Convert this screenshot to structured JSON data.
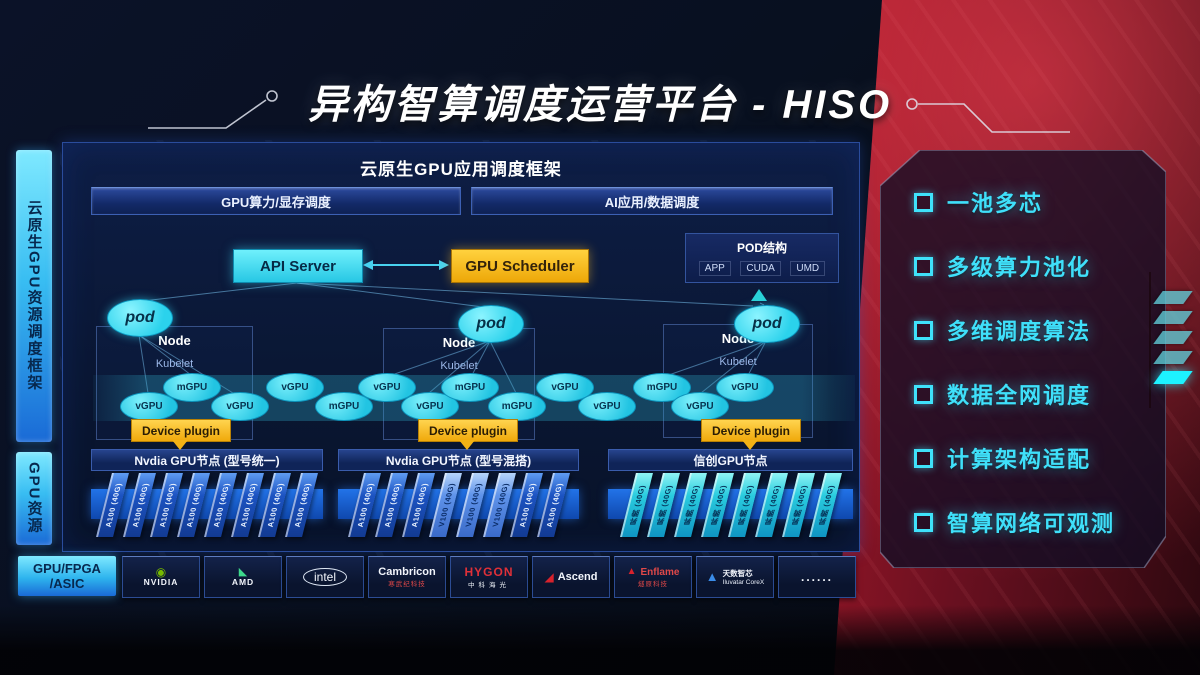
{
  "title": "异构智算调度运营平台 - HISO",
  "sidebar": {
    "top_label": "云原生GPU资源调度框架",
    "bottom_label": "GPU资源"
  },
  "framework": {
    "header": "云原生GPU应用调度框架",
    "bars": [
      "GPU算力/显存调度",
      "AI应用/数据调度"
    ],
    "api_server": "API Server",
    "gpu_scheduler": "GPU Scheduler",
    "pod_structure": {
      "title": "POD结构",
      "items": [
        "APP",
        "CUDA",
        "UMD"
      ]
    },
    "node_label": "Node",
    "kubelet_label": "Kubelet",
    "pod_label": "pod",
    "device_plugin_label": "Device plugin",
    "gpu_band": [
      "vGPU",
      "mGPU",
      "vGPU",
      "vGPU",
      "mGPU",
      "vGPU",
      "vGPU",
      "mGPU",
      "mGPU",
      "vGPU",
      "vGPU",
      "mGPU",
      "vGPU",
      "vGPU"
    ]
  },
  "gpu_sections": [
    {
      "header": "Nvdia GPU节点 (型号统一)",
      "cards": [
        {
          "label": "A100 (40G)",
          "tone": "blue"
        },
        {
          "label": "A100 (40G)",
          "tone": "blue"
        },
        {
          "label": "A100 (40G)",
          "tone": "blue"
        },
        {
          "label": "A100 (40G)",
          "tone": "blue"
        },
        {
          "label": "A100 (40G)",
          "tone": "blue"
        },
        {
          "label": "A100 (40G)",
          "tone": "blue"
        },
        {
          "label": "A100 (40G)",
          "tone": "blue"
        },
        {
          "label": "A100 (40G)",
          "tone": "blue"
        }
      ]
    },
    {
      "header": "Nvdia GPU节点 (型号混搭)",
      "cards": [
        {
          "label": "A100 (40G)",
          "tone": "blue"
        },
        {
          "label": "A100 (40G)",
          "tone": "blue"
        },
        {
          "label": "A100 (40G)",
          "tone": "blue"
        },
        {
          "label": "V100 (40G)",
          "tone": "light"
        },
        {
          "label": "V100 (40G)",
          "tone": "light"
        },
        {
          "label": "V100 (40G)",
          "tone": "light"
        },
        {
          "label": "A100 (40G)",
          "tone": "blue"
        },
        {
          "label": "A100 (40G)",
          "tone": "blue"
        }
      ]
    },
    {
      "header": "信创GPU节点",
      "cards": [
        {
          "label": "昇腾 (40G)",
          "tone": "cyan"
        },
        {
          "label": "昇腾 (40G)",
          "tone": "cyan"
        },
        {
          "label": "昇腾 (40G)",
          "tone": "cyan"
        },
        {
          "label": "昇腾 (40G)",
          "tone": "cyan"
        },
        {
          "label": "昇腾 (40G)",
          "tone": "cyan"
        },
        {
          "label": "昇腾 (40G)",
          "tone": "cyan"
        },
        {
          "label": "昇腾 (40G)",
          "tone": "cyan"
        },
        {
          "label": "昇腾 (40G)",
          "tone": "cyan"
        }
      ]
    }
  ],
  "hardware": {
    "label_line1": "GPU/FPGA",
    "label_line2": "/ASIC",
    "vendors": [
      {
        "name": "NVIDIA",
        "sub": "",
        "icon": "nvidia-logo"
      },
      {
        "name": "AMD",
        "sub": "",
        "icon": "amd-logo"
      },
      {
        "name": "intel",
        "sub": "",
        "icon": "intel-logo"
      },
      {
        "name": "Cambricon",
        "sub": "寒武纪科技",
        "icon": "cambricon-logo"
      },
      {
        "name": "HYGON",
        "sub": "中科海光",
        "icon": "hygon-logo"
      },
      {
        "name": "Ascend",
        "sub": "",
        "icon": "ascend-logo"
      },
      {
        "name": "Enflame",
        "sub": "燧原科技",
        "icon": "enflame-logo"
      },
      {
        "name": "天数智芯",
        "sub": "Iluvatar CoreX",
        "icon": "iluvatar-logo"
      },
      {
        "name": "......",
        "sub": "",
        "icon": "more-dots"
      }
    ]
  },
  "features": [
    "一池多芯",
    "多级算力池化",
    "多维调度算法",
    "数据全网调度",
    "计算架构适配",
    "智算网络可观测"
  ],
  "colors": {
    "accent_cyan": "#35dff5",
    "scheduler_yellow": "#f3b718",
    "node_blue": "#2a6ae0",
    "backdrop_red": "#b51a2c"
  }
}
